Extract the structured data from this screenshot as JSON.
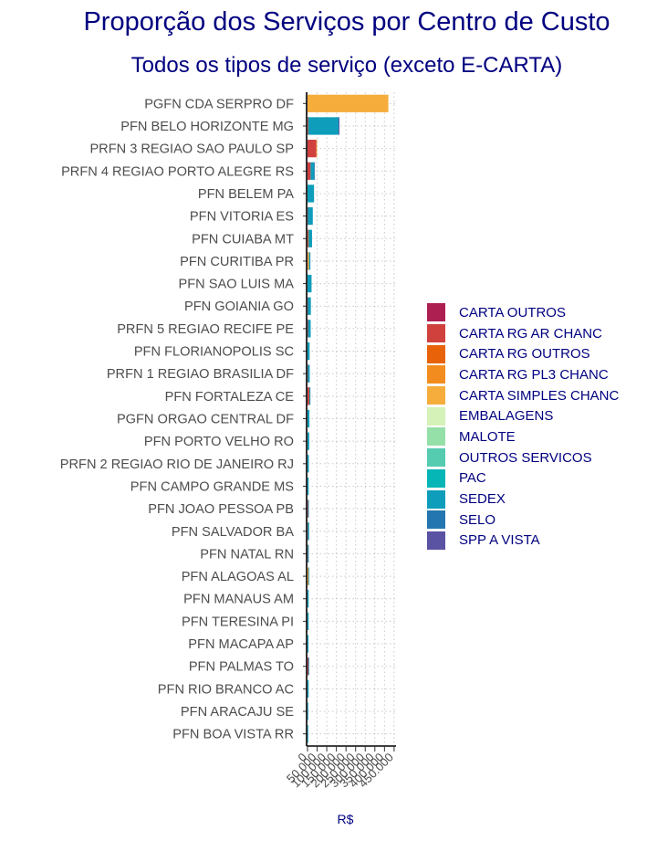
{
  "chart_data": {
    "type": "bar",
    "orientation": "horizontal",
    "stacked": true,
    "title": "Proporção dos Serviços por Centro de Custo",
    "subtitle": "Todos os tipos de serviço (exceto E-CARTA)",
    "xlabel": "R$",
    "ylabel": "",
    "xlim": [
      0,
      460000
    ],
    "x_ticks": [
      0,
      50000,
      100000,
      150000,
      200000,
      250000,
      300000,
      350000,
      400000,
      450000
    ],
    "x_tick_labels": [
      "0",
      "50.000",
      "100.000",
      "150.000",
      "200.000",
      "250.000",
      "300.000",
      "350.000",
      "400.000",
      "450.000"
    ],
    "grid": true,
    "legend_position": "right",
    "categories": [
      "PGFN CDA SERPRO DF",
      "PFN BELO HORIZONTE MG",
      "PRFN 3 REGIAO SAO PAULO SP",
      "PRFN 4 REGIAO PORTO ALEGRE RS",
      "PFN BELEM PA",
      "PFN VITORIA ES",
      "PFN CUIABA MT",
      "PFN CURITIBA PR",
      "PFN SAO LUIS MA",
      "PFN GOIANIA GO",
      "PRFN 5 REGIAO RECIFE PE",
      "PFN FLORIANOPOLIS SC",
      "PRFN 1 REGIAO BRASILIA DF",
      "PFN FORTALEZA CE",
      "PGFN ORGAO CENTRAL DF",
      "PFN PORTO VELHO RO",
      "PRFN 2 REGIAO RIO DE JANEIRO RJ",
      "PFN CAMPO GRANDE MS",
      "PFN JOAO PESSOA PB",
      "PFN SALVADOR BA",
      "PFN NATAL RN",
      "PFN ALAGOAS AL",
      "PFN MANAUS AM",
      "PFN TERESINA PI",
      "PFN MACAPA AP",
      "PFN PALMAS TO",
      "PFN RIO BRANCO AC",
      "PFN ARACAJU SE",
      "PFN BOA VISTA RR"
    ],
    "series": [
      {
        "name": "CARTA OUTROS",
        "color": "#AD1F50",
        "values": [
          0,
          2000,
          500,
          1000,
          0,
          500,
          500,
          0,
          0,
          500,
          500,
          0,
          500,
          1000,
          0,
          0,
          0,
          0,
          1000,
          500,
          500,
          0,
          0,
          0,
          0,
          2000,
          0,
          0,
          0
        ]
      },
      {
        "name": "CARTA RG AR CHANC",
        "color": "#D0413E",
        "values": [
          0,
          1000,
          45000,
          15000,
          0,
          1000,
          3000,
          1000,
          0,
          1000,
          2000,
          0,
          1000,
          8000,
          0,
          0,
          0,
          0,
          2000,
          1000,
          1000,
          0,
          0,
          0,
          0,
          3000,
          0,
          0,
          0
        ]
      },
      {
        "name": "CARTA RG OUTROS",
        "color": "#E8620A",
        "values": [
          0,
          0,
          0,
          0,
          0,
          0,
          0,
          0,
          0,
          0,
          0,
          0,
          0,
          1000,
          0,
          0,
          0,
          0,
          0,
          0,
          0,
          0,
          0,
          0,
          0,
          0,
          0,
          0,
          0
        ]
      },
      {
        "name": "CARTA RG PL3 CHANC",
        "color": "#F28C1E",
        "values": [
          0,
          0,
          1000,
          0,
          0,
          0,
          1000,
          0,
          0,
          0,
          0,
          0,
          0,
          0,
          0,
          0,
          0,
          0,
          0,
          0,
          0,
          2000,
          0,
          0,
          0,
          0,
          0,
          0,
          0
        ]
      },
      {
        "name": "CARTA SIMPLES CHANC",
        "color": "#F6AD3C",
        "values": [
          420000,
          1000,
          0,
          0,
          0,
          0,
          1000,
          7000,
          0,
          0,
          0,
          0,
          0,
          0,
          0,
          0,
          0,
          0,
          0,
          0,
          0,
          3000,
          0,
          0,
          0,
          0,
          0,
          0,
          0
        ]
      },
      {
        "name": "EMBALAGENS",
        "color": "#D5F2B8",
        "values": [
          0,
          0,
          0,
          0,
          0,
          0,
          0,
          0,
          0,
          0,
          0,
          0,
          0,
          0,
          0,
          0,
          0,
          0,
          0,
          0,
          0,
          0,
          0,
          0,
          0,
          0,
          0,
          0,
          0
        ]
      },
      {
        "name": "MALOTE",
        "color": "#95DFA8",
        "values": [
          0,
          0,
          0,
          0,
          0,
          0,
          0,
          0,
          0,
          0,
          0,
          0,
          0,
          0,
          0,
          0,
          0,
          0,
          0,
          0,
          0,
          0,
          0,
          0,
          0,
          0,
          0,
          0,
          0
        ]
      },
      {
        "name": "OUTROS SERVICOS",
        "color": "#55CBB0",
        "values": [
          0,
          0,
          0,
          0,
          0,
          0,
          0,
          0,
          0,
          0,
          0,
          0,
          0,
          0,
          0,
          0,
          0,
          0,
          0,
          0,
          0,
          0,
          0,
          0,
          0,
          0,
          0,
          0,
          0
        ]
      },
      {
        "name": "PAC",
        "color": "#06B6B6",
        "values": [
          0,
          2000,
          0,
          0,
          0,
          0,
          0,
          0,
          0,
          0,
          0,
          0,
          0,
          0,
          0,
          0,
          0,
          0,
          0,
          0,
          0,
          0,
          0,
          0,
          0,
          0,
          0,
          0,
          0
        ]
      },
      {
        "name": "SEDEX",
        "color": "#0E9DBA",
        "values": [
          0,
          155000,
          0,
          18000,
          34000,
          26000,
          18000,
          7000,
          21000,
          16000,
          14000,
          11000,
          10000,
          5000,
          10000,
          9000,
          7000,
          6000,
          4000,
          7000,
          5000,
          3000,
          6000,
          6000,
          5000,
          3000,
          6000,
          1000,
          1000
        ]
      },
      {
        "name": "SELO",
        "color": "#2476B0",
        "values": [
          0,
          1000,
          0,
          1000,
          0,
          0,
          0,
          0,
          0,
          0,
          0,
          0,
          0,
          0,
          0,
          0,
          0,
          0,
          0,
          0,
          0,
          0,
          0,
          0,
          0,
          0,
          0,
          0,
          0
        ]
      },
      {
        "name": "SPP A VISTA",
        "color": "#5A52A3",
        "values": [
          0,
          2000,
          0,
          0,
          0,
          0,
          0,
          0,
          0,
          0,
          0,
          0,
          0,
          0,
          0,
          0,
          0,
          0,
          0,
          0,
          0,
          0,
          0,
          0,
          0,
          0,
          0,
          0,
          0
        ]
      }
    ]
  }
}
